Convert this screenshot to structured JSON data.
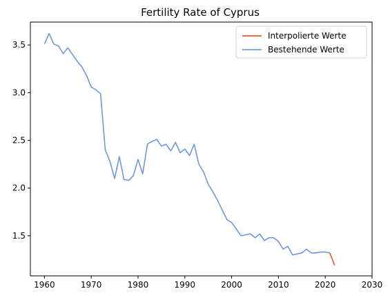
{
  "chart_data": {
    "type": "line",
    "title": "Fertility Rate of Cyprus",
    "xlabel": "",
    "ylabel": "",
    "xlim": [
      1957,
      2030
    ],
    "ylim": [
      1.08,
      3.74
    ],
    "xticks": [
      1960,
      1970,
      1980,
      1990,
      2000,
      2010,
      2020,
      2030
    ],
    "yticks": [
      1.5,
      2.0,
      2.5,
      3.0,
      3.5
    ],
    "ytick_labels": [
      "1.5",
      "2.0",
      "2.5",
      "3.0",
      "3.5"
    ],
    "grid": false,
    "legend": "top-right",
    "series": [
      {
        "name": "Interpolierte Werte",
        "color": "#e8562a",
        "x": [
          2021,
          2022
        ],
        "y": [
          1.32,
          1.19
        ]
      },
      {
        "name": "Bestehende Werte",
        "color": "#6f96dd",
        "x": [
          1960,
          1961,
          1962,
          1963,
          1964,
          1965,
          1966,
          1967,
          1968,
          1969,
          1970,
          1971,
          1972,
          1973,
          1974,
          1975,
          1976,
          1977,
          1978,
          1979,
          1980,
          1981,
          1982,
          1983,
          1984,
          1985,
          1986,
          1987,
          1988,
          1989,
          1990,
          1991,
          1992,
          1993,
          1994,
          1995,
          1996,
          1997,
          1998,
          1999,
          2000,
          2001,
          2002,
          2003,
          2004,
          2005,
          2006,
          2007,
          2008,
          2009,
          2010,
          2011,
          2012,
          2013,
          2014,
          2015,
          2016,
          2017,
          2018,
          2019,
          2020,
          2021
        ],
        "y": [
          3.51,
          3.62,
          3.51,
          3.49,
          3.41,
          3.47,
          3.4,
          3.33,
          3.27,
          3.18,
          3.06,
          3.03,
          2.99,
          2.4,
          2.28,
          2.1,
          2.33,
          2.09,
          2.08,
          2.13,
          2.3,
          2.15,
          2.46,
          2.49,
          2.51,
          2.44,
          2.46,
          2.39,
          2.48,
          2.37,
          2.41,
          2.34,
          2.46,
          2.25,
          2.17,
          2.04,
          1.96,
          1.87,
          1.77,
          1.67,
          1.64,
          1.57,
          1.5,
          1.51,
          1.52,
          1.48,
          1.52,
          1.45,
          1.48,
          1.48,
          1.44,
          1.36,
          1.39,
          1.3,
          1.31,
          1.32,
          1.36,
          1.32,
          1.32,
          1.33,
          1.33,
          1.32
        ]
      }
    ]
  }
}
